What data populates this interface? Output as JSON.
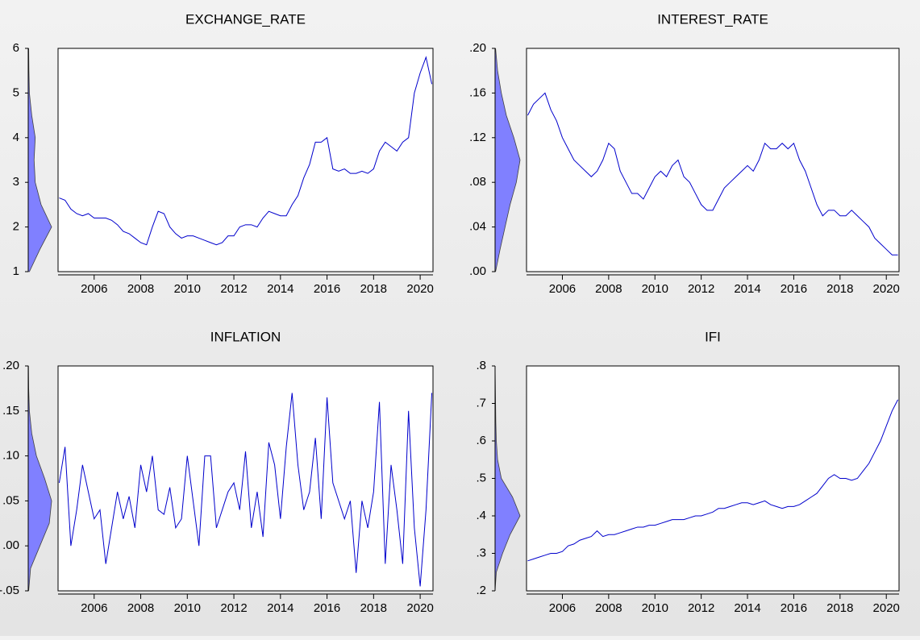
{
  "chart_data": [
    {
      "type": "line",
      "title": "EXCHANGE_RATE",
      "color": "#0000cc",
      "x": [
        2004.5,
        2004.75,
        2005,
        2005.25,
        2005.5,
        2005.75,
        2006,
        2006.25,
        2006.5,
        2006.75,
        2007,
        2007.25,
        2007.5,
        2007.75,
        2008,
        2008.25,
        2008.5,
        2008.75,
        2009,
        2009.25,
        2009.5,
        2009.75,
        2010,
        2010.25,
        2010.5,
        2010.75,
        2011,
        2011.25,
        2011.5,
        2011.75,
        2012,
        2012.25,
        2012.5,
        2012.75,
        2013,
        2013.25,
        2013.5,
        2013.75,
        2014,
        2014.25,
        2014.5,
        2014.75,
        2015,
        2015.25,
        2015.5,
        2015.75,
        2016,
        2016.25,
        2016.5,
        2016.75,
        2017,
        2017.25,
        2017.5,
        2017.75,
        2018,
        2018.25,
        2018.5,
        2018.75,
        2019,
        2019.25,
        2019.5,
        2019.75,
        2020,
        2020.25,
        2020.5
      ],
      "values": [
        2.65,
        2.6,
        2.4,
        2.3,
        2.25,
        2.3,
        2.2,
        2.2,
        2.2,
        2.15,
        2.05,
        1.9,
        1.85,
        1.75,
        1.65,
        1.6,
        2.0,
        2.35,
        2.3,
        2.0,
        1.85,
        1.75,
        1.8,
        1.8,
        1.75,
        1.7,
        1.65,
        1.6,
        1.65,
        1.8,
        1.8,
        2.0,
        2.05,
        2.05,
        2.0,
        2.2,
        2.35,
        2.3,
        2.25,
        2.25,
        2.5,
        2.7,
        3.1,
        3.4,
        3.9,
        3.9,
        4.0,
        3.3,
        3.25,
        3.3,
        3.2,
        3.2,
        3.25,
        3.2,
        3.3,
        3.7,
        3.9,
        3.8,
        3.7,
        3.9,
        4.0,
        5.0,
        5.45,
        5.8,
        5.2
      ],
      "xlim": [
        2004.45,
        2020.55
      ],
      "xticks": [
        2006,
        2008,
        2010,
        2012,
        2014,
        2016,
        2018,
        2020
      ],
      "ylim": [
        1,
        6
      ],
      "yticks": [
        1,
        2,
        3,
        4,
        5,
        6
      ],
      "density": {
        "color": "#8080ff",
        "y": [
          1,
          1.5,
          2,
          2.5,
          3,
          3.5,
          4,
          4.5,
          5,
          5.5,
          6
        ],
        "values": [
          0.05,
          0.5,
          1.0,
          0.55,
          0.3,
          0.25,
          0.3,
          0.15,
          0.05,
          0.03,
          0.02
        ]
      }
    },
    {
      "type": "line",
      "title": "INTEREST_RATE",
      "color": "#0000cc",
      "x": [
        2004.5,
        2004.75,
        2005,
        2005.25,
        2005.5,
        2005.75,
        2006,
        2006.25,
        2006.5,
        2006.75,
        2007,
        2007.25,
        2007.5,
        2007.75,
        2008,
        2008.25,
        2008.5,
        2008.75,
        2009,
        2009.25,
        2009.5,
        2009.75,
        2010,
        2010.25,
        2010.5,
        2010.75,
        2011,
        2011.25,
        2011.5,
        2011.75,
        2012,
        2012.25,
        2012.5,
        2012.75,
        2013,
        2013.25,
        2013.5,
        2013.75,
        2014,
        2014.25,
        2014.5,
        2014.75,
        2015,
        2015.25,
        2015.5,
        2015.75,
        2016,
        2016.25,
        2016.5,
        2016.75,
        2017,
        2017.25,
        2017.5,
        2017.75,
        2018,
        2018.25,
        2018.5,
        2018.75,
        2019,
        2019.25,
        2019.5,
        2019.75,
        2020,
        2020.25,
        2020.5
      ],
      "values": [
        0.14,
        0.15,
        0.155,
        0.16,
        0.145,
        0.135,
        0.12,
        0.11,
        0.1,
        0.095,
        0.09,
        0.085,
        0.09,
        0.1,
        0.115,
        0.11,
        0.09,
        0.08,
        0.07,
        0.07,
        0.065,
        0.075,
        0.085,
        0.09,
        0.085,
        0.095,
        0.1,
        0.085,
        0.08,
        0.07,
        0.06,
        0.055,
        0.055,
        0.065,
        0.075,
        0.08,
        0.085,
        0.09,
        0.095,
        0.09,
        0.1,
        0.115,
        0.11,
        0.11,
        0.115,
        0.11,
        0.115,
        0.1,
        0.09,
        0.075,
        0.06,
        0.05,
        0.055,
        0.055,
        0.05,
        0.05,
        0.055,
        0.05,
        0.045,
        0.04,
        0.03,
        0.025,
        0.02,
        0.015,
        0.015
      ],
      "xlim": [
        2004.45,
        2020.55
      ],
      "xticks": [
        2006,
        2008,
        2010,
        2012,
        2014,
        2016,
        2018,
        2020
      ],
      "ylim": [
        0,
        0.2
      ],
      "yticks": [
        {
          "value": 0,
          "label": ".00"
        },
        {
          "value": 0.04,
          "label": ".04"
        },
        {
          "value": 0.08,
          "label": ".08"
        },
        {
          "value": 0.12,
          "label": ".12"
        },
        {
          "value": 0.16,
          "label": ".16"
        },
        {
          "value": 0.2,
          "label": ".20"
        }
      ],
      "density": {
        "color": "#8080ff",
        "y": [
          0,
          0.02,
          0.04,
          0.06,
          0.08,
          0.1,
          0.12,
          0.14,
          0.16,
          0.18,
          0.2
        ],
        "values": [
          0.02,
          0.2,
          0.4,
          0.6,
          0.85,
          1.0,
          0.75,
          0.45,
          0.25,
          0.1,
          0.02
        ]
      }
    },
    {
      "type": "line",
      "title": "INFLATION",
      "color": "#0000cc",
      "x": [
        2004.5,
        2004.75,
        2005,
        2005.25,
        2005.5,
        2005.75,
        2006,
        2006.25,
        2006.5,
        2006.75,
        2007,
        2007.25,
        2007.5,
        2007.75,
        2008,
        2008.25,
        2008.5,
        2008.75,
        2009,
        2009.25,
        2009.5,
        2009.75,
        2010,
        2010.25,
        2010.5,
        2010.75,
        2011,
        2011.25,
        2011.5,
        2011.75,
        2012,
        2012.25,
        2012.5,
        2012.75,
        2013,
        2013.25,
        2013.5,
        2013.75,
        2014,
        2014.25,
        2014.5,
        2014.75,
        2015,
        2015.25,
        2015.5,
        2015.75,
        2016,
        2016.25,
        2016.5,
        2016.75,
        2017,
        2017.25,
        2017.5,
        2017.75,
        2018,
        2018.25,
        2018.5,
        2018.75,
        2019,
        2019.25,
        2019.5,
        2019.75,
        2020,
        2020.25,
        2020.5
      ],
      "values": [
        0.07,
        0.11,
        0.0,
        0.04,
        0.09,
        0.06,
        0.03,
        0.04,
        -0.02,
        0.02,
        0.06,
        0.03,
        0.055,
        0.02,
        0.09,
        0.06,
        0.1,
        0.04,
        0.035,
        0.065,
        0.02,
        0.03,
        0.1,
        0.05,
        0.0,
        0.1,
        0.1,
        0.02,
        0.04,
        0.06,
        0.07,
        0.04,
        0.105,
        0.02,
        0.06,
        0.01,
        0.115,
        0.09,
        0.03,
        0.11,
        0.17,
        0.09,
        0.04,
        0.06,
        0.12,
        0.03,
        0.165,
        0.07,
        0.05,
        0.03,
        0.05,
        -0.03,
        0.05,
        0.02,
        0.06,
        0.16,
        -0.02,
        0.09,
        0.04,
        -0.02,
        0.15,
        0.02,
        -0.045,
        0.04,
        0.17
      ],
      "xlim": [
        2004.45,
        2020.55
      ],
      "xticks": [
        2006,
        2008,
        2010,
        2012,
        2014,
        2016,
        2018,
        2020
      ],
      "ylim": [
        -0.05,
        0.2
      ],
      "yticks": [
        {
          "value": -0.05,
          "label": "-.05"
        },
        {
          "value": 0,
          "label": ".00"
        },
        {
          "value": 0.05,
          "label": ".05"
        },
        {
          "value": 0.1,
          "label": ".10"
        },
        {
          "value": 0.15,
          "label": ".15"
        },
        {
          "value": 0.2,
          "label": ".20"
        }
      ],
      "density": {
        "color": "#8080ff",
        "y": [
          -0.05,
          -0.025,
          0,
          0.025,
          0.05,
          0.075,
          0.1,
          0.125,
          0.15,
          0.175,
          0.2
        ],
        "values": [
          0.02,
          0.1,
          0.5,
          0.9,
          1.0,
          0.7,
          0.35,
          0.15,
          0.05,
          0.02,
          0.01
        ]
      }
    },
    {
      "type": "line",
      "title": "IFI",
      "color": "#0000cc",
      "x": [
        2004.5,
        2004.75,
        2005,
        2005.25,
        2005.5,
        2005.75,
        2006,
        2006.25,
        2006.5,
        2006.75,
        2007,
        2007.25,
        2007.5,
        2007.75,
        2008,
        2008.25,
        2008.5,
        2008.75,
        2009,
        2009.25,
        2009.5,
        2009.75,
        2010,
        2010.25,
        2010.5,
        2010.75,
        2011,
        2011.25,
        2011.5,
        2011.75,
        2012,
        2012.25,
        2012.5,
        2012.75,
        2013,
        2013.25,
        2013.5,
        2013.75,
        2014,
        2014.25,
        2014.5,
        2014.75,
        2015,
        2015.25,
        2015.5,
        2015.75,
        2016,
        2016.25,
        2016.5,
        2016.75,
        2017,
        2017.25,
        2017.5,
        2017.75,
        2018,
        2018.25,
        2018.5,
        2018.75,
        2019,
        2019.25,
        2019.5,
        2019.75,
        2020,
        2020.25,
        2020.5
      ],
      "values": [
        0.28,
        0.285,
        0.29,
        0.295,
        0.3,
        0.3,
        0.305,
        0.32,
        0.325,
        0.335,
        0.34,
        0.345,
        0.36,
        0.345,
        0.35,
        0.35,
        0.355,
        0.36,
        0.365,
        0.37,
        0.37,
        0.375,
        0.375,
        0.38,
        0.385,
        0.39,
        0.39,
        0.39,
        0.395,
        0.4,
        0.4,
        0.405,
        0.41,
        0.42,
        0.42,
        0.425,
        0.43,
        0.435,
        0.435,
        0.43,
        0.435,
        0.44,
        0.43,
        0.425,
        0.42,
        0.425,
        0.425,
        0.43,
        0.44,
        0.45,
        0.46,
        0.48,
        0.5,
        0.51,
        0.5,
        0.5,
        0.495,
        0.5,
        0.52,
        0.54,
        0.57,
        0.6,
        0.64,
        0.68,
        0.71
      ],
      "xlim": [
        2004.45,
        2020.55
      ],
      "xticks": [
        2006,
        2008,
        2010,
        2012,
        2014,
        2016,
        2018,
        2020
      ],
      "ylim": [
        0.2,
        0.8
      ],
      "yticks": [
        {
          "value": 0.2,
          "label": ".2"
        },
        {
          "value": 0.3,
          "label": ".3"
        },
        {
          "value": 0.4,
          "label": ".4"
        },
        {
          "value": 0.5,
          "label": ".5"
        },
        {
          "value": 0.6,
          "label": ".6"
        },
        {
          "value": 0.7,
          "label": ".7"
        },
        {
          "value": 0.8,
          "label": ".8"
        }
      ],
      "density": {
        "color": "#8080ff",
        "y": [
          0.2,
          0.25,
          0.3,
          0.35,
          0.4,
          0.45,
          0.5,
          0.55,
          0.6,
          0.65,
          0.7,
          0.75,
          0.8
        ],
        "values": [
          0.0,
          0.05,
          0.3,
          0.6,
          1.0,
          0.7,
          0.25,
          0.1,
          0.05,
          0.03,
          0.02,
          0.01,
          0.0
        ]
      }
    }
  ]
}
